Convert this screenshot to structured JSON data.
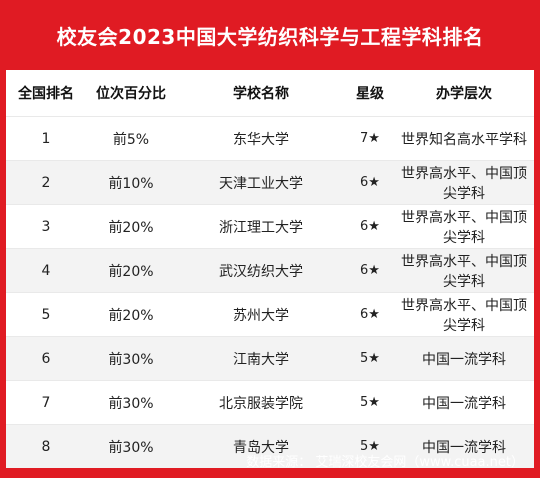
{
  "title": "校友会2023中国大学纺织科学与工程学科排名",
  "columns": [
    "全国排名",
    "位次百分比",
    "学校名称",
    "星级",
    "办学层次"
  ],
  "rows": [
    {
      "rank": "1",
      "percent": "前5%",
      "school": "东华大学",
      "stars": "7★",
      "level": "世界知名高水平学科"
    },
    {
      "rank": "2",
      "percent": "前10%",
      "school": "天津工业大学",
      "stars": "6★",
      "level": "世界高水平、中国顶尖学科"
    },
    {
      "rank": "3",
      "percent": "前20%",
      "school": "浙江理工大学",
      "stars": "6★",
      "level": "世界高水平、中国顶尖学科"
    },
    {
      "rank": "4",
      "percent": "前20%",
      "school": "武汉纺织大学",
      "stars": "6★",
      "level": "世界高水平、中国顶尖学科"
    },
    {
      "rank": "5",
      "percent": "前20%",
      "school": "苏州大学",
      "stars": "6★",
      "level": "世界高水平、中国顶尖学科"
    },
    {
      "rank": "6",
      "percent": "前30%",
      "school": "江南大学",
      "stars": "5★",
      "level": "中国一流学科"
    },
    {
      "rank": "7",
      "percent": "前30%",
      "school": "北京服装学院",
      "stars": "5★",
      "level": "中国一流学科"
    },
    {
      "rank": "8",
      "percent": "前30%",
      "school": "青岛大学",
      "stars": "5★",
      "level": "中国一流学科"
    }
  ],
  "footer": "数据来源：  艾瑞深校友会网（www.cuaa.net）",
  "colors": {
    "background": "#e01b23",
    "alt_row": "#f3f3f3"
  }
}
